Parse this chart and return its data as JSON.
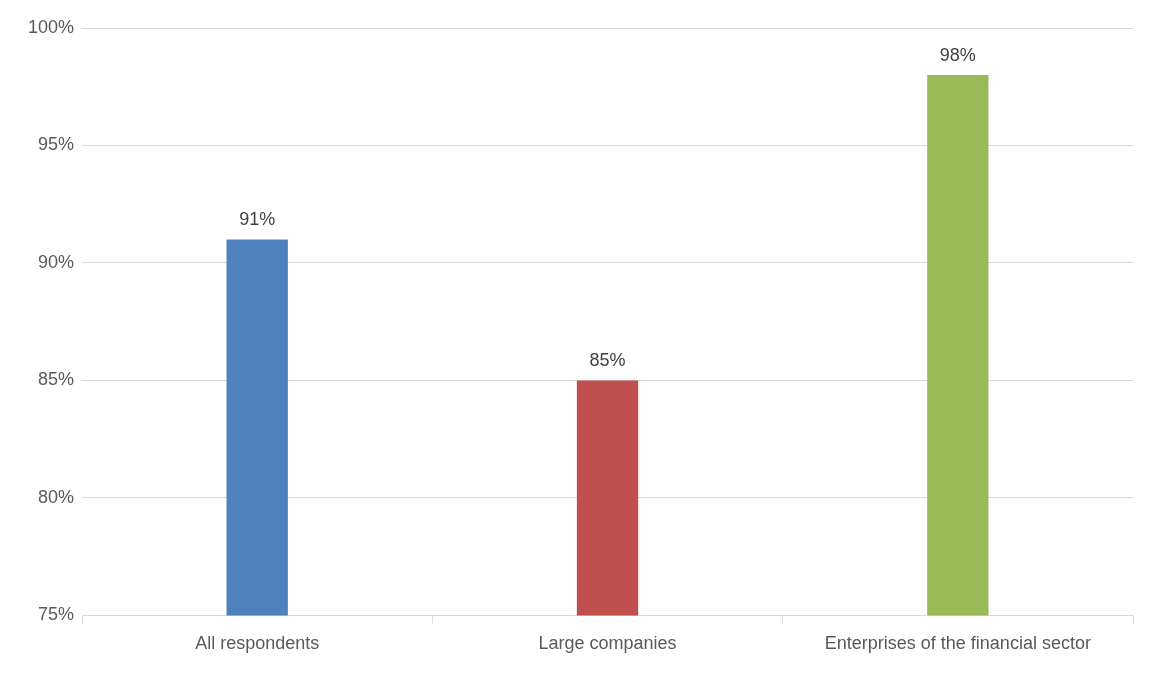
{
  "chart_data": {
    "type": "bar",
    "categories": [
      "All respondents",
      "Large companies",
      "Enterprises of the financial sector"
    ],
    "values": [
      91,
      85,
      98
    ],
    "colors": [
      "#4f81bd",
      "#c0504d",
      "#9bbb59"
    ],
    "value_labels": [
      "91%",
      "85%",
      "98%"
    ],
    "ylim": [
      75,
      100
    ],
    "yticks": [
      {
        "value": 75,
        "label": "75%"
      },
      {
        "value": 80,
        "label": "80%"
      },
      {
        "value": 85,
        "label": "85%"
      },
      {
        "value": 90,
        "label": "90%"
      },
      {
        "value": 95,
        "label": "95%"
      },
      {
        "value": 100,
        "label": "100%"
      }
    ],
    "grid": "y",
    "legend": false
  }
}
